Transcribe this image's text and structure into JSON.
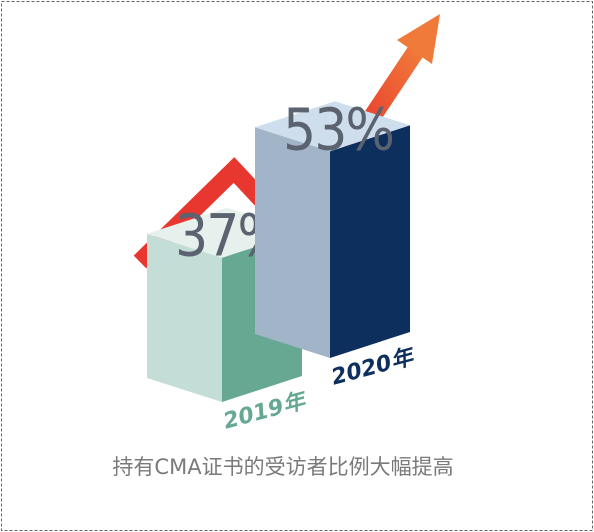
{
  "chart_data": {
    "type": "bar3d",
    "caption": "持有CMA证书的受访者比例大幅提高",
    "categories": [
      "2019年",
      "2020年"
    ],
    "values": [
      37,
      53
    ],
    "value_labels": [
      "37%",
      "53%"
    ],
    "bar_colors": [
      [
        "#c4ddd6",
        "#67a893",
        "#e6f1ed"
      ],
      [
        "#a2b5c8",
        "#0d2f5e",
        "#cfdeec"
      ]
    ]
  }
}
